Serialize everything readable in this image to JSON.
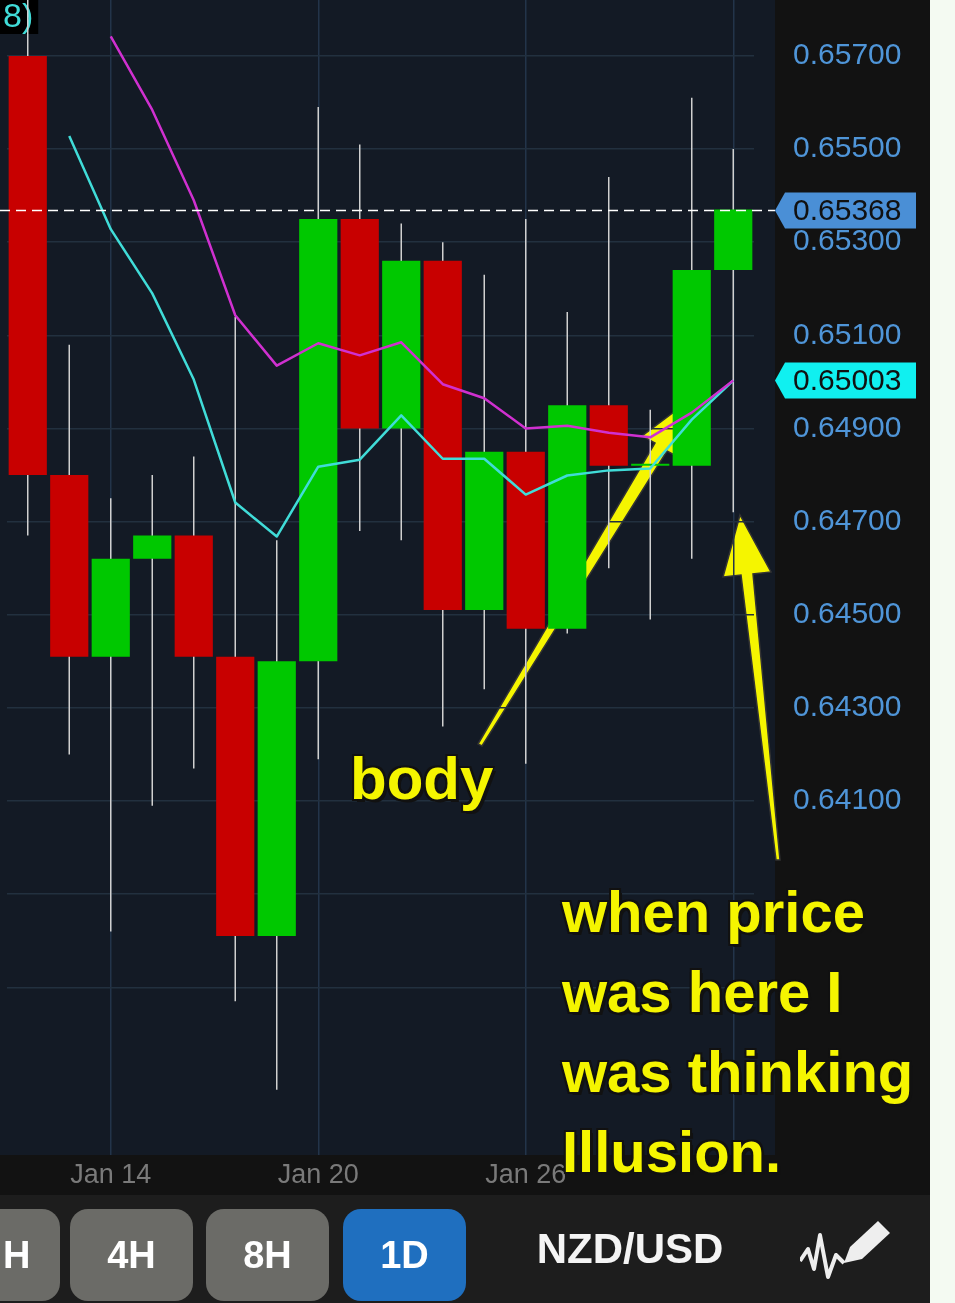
{
  "chart_data": {
    "type": "candlestick",
    "title": "NZD/USD",
    "categories": [
      null,
      null,
      "Jan 14",
      null,
      null,
      null,
      null,
      "Jan 20",
      null,
      null,
      null,
      null,
      "Jan 26",
      null,
      null,
      null,
      null,
      null
    ],
    "ohlc": [
      [
        0.657,
        0.6582,
        0.6467,
        0.648
      ],
      [
        0.648,
        0.6508,
        0.642,
        0.6441
      ],
      [
        0.6441,
        0.6475,
        0.6382,
        0.6462
      ],
      [
        0.6462,
        0.648,
        0.6409,
        0.6467
      ],
      [
        0.6467,
        0.6484,
        0.6417,
        0.6441
      ],
      [
        0.6441,
        0.6514,
        0.6367,
        0.6381
      ],
      [
        0.6381,
        0.6466,
        0.6348,
        0.644
      ],
      [
        0.644,
        0.6559,
        0.6419,
        0.6535
      ],
      [
        0.6535,
        0.6551,
        0.6468,
        0.649
      ],
      [
        0.649,
        0.6534,
        0.6466,
        0.6526
      ],
      [
        0.6526,
        0.653,
        0.6426,
        0.6451
      ],
      [
        0.6451,
        0.6523,
        0.6434,
        0.6485
      ],
      [
        0.6485,
        0.6535,
        0.6418,
        0.6447
      ],
      [
        0.6447,
        0.6515,
        0.6446,
        0.6495
      ],
      [
        0.6495,
        0.6544,
        0.646,
        0.6482
      ],
      [
        0.6482,
        0.6494,
        0.6449,
        0.6482
      ],
      [
        0.6482,
        0.6561,
        0.6462,
        0.6524
      ],
      [
        0.6524,
        0.655,
        0.6472,
        0.6537
      ]
    ],
    "series": [
      {
        "type": "line",
        "color": "#d030d0",
        "values": [
          null,
          null,
          0.65742,
          0.65584,
          0.6539,
          0.65143,
          0.65035,
          0.65083,
          0.65057,
          0.65085,
          0.64995,
          0.64965,
          0.649,
          0.64906,
          0.64891,
          0.64881,
          0.64934,
          0.65003
        ]
      },
      {
        "type": "line",
        "color": "#40dcd8",
        "values": [
          null,
          0.65528,
          0.65328,
          0.6519,
          0.65005,
          0.64741,
          0.64668,
          0.64818,
          0.64833,
          0.64928,
          0.64835,
          0.64835,
          0.64758,
          0.64799,
          0.6481,
          0.64814,
          0.64919,
          0.65003
        ]
      }
    ],
    "ylim": [
      0.6334,
      0.6582
    ],
    "yticks": [
      {
        "value": 0.657,
        "label": "0.65700"
      },
      {
        "value": 0.655,
        "label": "0.65500"
      },
      {
        "value": 0.653,
        "label": "0.65300"
      },
      {
        "value": 0.651,
        "label": "0.65100"
      },
      {
        "value": 0.649,
        "label": "0.64900"
      },
      {
        "value": 0.647,
        "label": "0.64700"
      },
      {
        "value": 0.645,
        "label": "0.64500"
      },
      {
        "value": 0.643,
        "label": "0.64300"
      },
      {
        "value": 0.641,
        "label": "0.64100"
      },
      {
        "value": 0.639,
        "label": null
      },
      {
        "value": 0.637,
        "label": null
      }
    ],
    "ref_lines": [
      {
        "axis": "y",
        "value": 0.65368,
        "label": "0.65368",
        "color": "#ffffff",
        "line_style": "dashed"
      }
    ],
    "annotations": [
      "8)",
      "body",
      "when price was here I was thinking Illusion.",
      "0.65003",
      "H",
      "4H",
      "8H",
      "1D"
    ],
    "grid": true,
    "marker": "none",
    "line_style": "solid"
  }
}
